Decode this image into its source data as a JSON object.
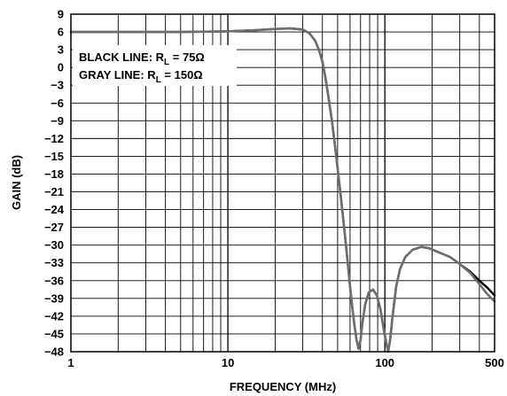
{
  "chart_data": {
    "type": "line",
    "xlabel": "FREQUENCY (MHz)",
    "ylabel": "GAIN (dB)",
    "xscale": "log",
    "xlim": [
      1,
      500
    ],
    "ylim": [
      -48,
      9
    ],
    "grid": true,
    "xticks": [
      {
        "value": 1,
        "label": "1"
      },
      {
        "value": 10,
        "label": "10"
      },
      {
        "value": 100,
        "label": "100"
      },
      {
        "value": 500,
        "label": "500"
      }
    ],
    "yticks": [
      {
        "value": 9,
        "label": "9"
      },
      {
        "value": 6,
        "label": "6"
      },
      {
        "value": 3,
        "label": "3"
      },
      {
        "value": 0,
        "label": "0"
      },
      {
        "value": -3,
        "label": "−3"
      },
      {
        "value": -6,
        "label": "−6"
      },
      {
        "value": -9,
        "label": "−9"
      },
      {
        "value": -12,
        "label": "−12"
      },
      {
        "value": -15,
        "label": "−15"
      },
      {
        "value": -18,
        "label": "−18"
      },
      {
        "value": -21,
        "label": "−21"
      },
      {
        "value": -24,
        "label": "−24"
      },
      {
        "value": -27,
        "label": "−27"
      },
      {
        "value": -30,
        "label": "−30"
      },
      {
        "value": -33,
        "label": "−33"
      },
      {
        "value": -36,
        "label": "−36"
      },
      {
        "value": -39,
        "label": "−39"
      },
      {
        "value": -42,
        "label": "−42"
      },
      {
        "value": -45,
        "label": "−45"
      },
      {
        "value": -48,
        "label": "−48"
      }
    ],
    "legend": {
      "placement": "top-left",
      "lines": [
        {
          "prefix": "BLACK LINE: R",
          "sub": "L",
          "suffix": " = 75Ω"
        },
        {
          "prefix": "GRAY LINE: R",
          "sub": "L",
          "suffix": " = 150Ω"
        }
      ]
    },
    "series": [
      {
        "name": "BLACK LINE: RL = 75Ω",
        "color": "#000000",
        "points": [
          [
            1,
            6.0
          ],
          [
            2,
            6.0
          ],
          [
            5,
            6.0
          ],
          [
            10,
            6.1
          ],
          [
            15,
            6.3
          ],
          [
            20,
            6.5
          ],
          [
            25,
            6.6
          ],
          [
            30,
            6.4
          ],
          [
            33,
            5.8
          ],
          [
            36,
            4.5
          ],
          [
            38,
            3.0
          ],
          [
            40,
            1.0
          ],
          [
            42,
            -2.0
          ],
          [
            44,
            -5.5
          ],
          [
            46,
            -9.0
          ],
          [
            48,
            -13.0
          ],
          [
            50,
            -17.0
          ],
          [
            52,
            -21.0
          ],
          [
            54,
            -25.0
          ],
          [
            56,
            -29.0
          ],
          [
            58,
            -33.0
          ],
          [
            60,
            -37.0
          ],
          [
            62,
            -40.5
          ],
          [
            64,
            -43.5
          ],
          [
            66,
            -46.0
          ],
          [
            68,
            -47.5
          ],
          [
            70,
            -46.0
          ],
          [
            72,
            -43.0
          ],
          [
            75,
            -40.0
          ],
          [
            79,
            -38.0
          ],
          [
            84,
            -37.5
          ],
          [
            89,
            -38.5
          ],
          [
            94,
            -41.0
          ],
          [
            98,
            -44.0
          ],
          [
            102,
            -46.5
          ],
          [
            105,
            -48.0
          ],
          [
            108,
            -46.0
          ],
          [
            112,
            -42.0
          ],
          [
            118,
            -37.0
          ],
          [
            125,
            -34.0
          ],
          [
            135,
            -32.0
          ],
          [
            150,
            -30.8
          ],
          [
            170,
            -30.3
          ],
          [
            190,
            -30.5
          ],
          [
            220,
            -31.2
          ],
          [
            260,
            -32.0
          ],
          [
            300,
            -33.2
          ],
          [
            350,
            -34.5
          ],
          [
            400,
            -36.0
          ],
          [
            450,
            -37.2
          ],
          [
            500,
            -38.5
          ]
        ]
      },
      {
        "name": "GRAY LINE: RL = 150Ω",
        "color": "#6e6e6e",
        "points": [
          [
            1,
            6.0
          ],
          [
            2,
            6.0
          ],
          [
            5,
            6.0
          ],
          [
            10,
            6.1
          ],
          [
            15,
            6.3
          ],
          [
            20,
            6.5
          ],
          [
            25,
            6.6
          ],
          [
            30,
            6.4
          ],
          [
            33,
            5.8
          ],
          [
            36,
            4.5
          ],
          [
            38,
            3.0
          ],
          [
            40,
            1.0
          ],
          [
            42,
            -2.0
          ],
          [
            44,
            -5.5
          ],
          [
            46,
            -9.0
          ],
          [
            48,
            -13.0
          ],
          [
            50,
            -17.0
          ],
          [
            52,
            -21.0
          ],
          [
            54,
            -25.0
          ],
          [
            56,
            -29.0
          ],
          [
            58,
            -33.0
          ],
          [
            60,
            -37.0
          ],
          [
            62,
            -40.5
          ],
          [
            64,
            -43.5
          ],
          [
            66,
            -46.0
          ],
          [
            68,
            -47.5
          ],
          [
            70,
            -46.0
          ],
          [
            72,
            -43.0
          ],
          [
            75,
            -40.0
          ],
          [
            79,
            -38.0
          ],
          [
            84,
            -37.5
          ],
          [
            89,
            -38.5
          ],
          [
            94,
            -41.0
          ],
          [
            98,
            -44.0
          ],
          [
            102,
            -46.5
          ],
          [
            105,
            -48.0
          ],
          [
            108,
            -46.0
          ],
          [
            112,
            -42.0
          ],
          [
            118,
            -37.0
          ],
          [
            125,
            -34.0
          ],
          [
            135,
            -32.0
          ],
          [
            150,
            -30.8
          ],
          [
            170,
            -30.3
          ],
          [
            190,
            -30.5
          ],
          [
            220,
            -31.2
          ],
          [
            260,
            -32.0
          ],
          [
            300,
            -33.2
          ],
          [
            350,
            -34.7
          ],
          [
            400,
            -36.6
          ],
          [
            450,
            -38.3
          ],
          [
            500,
            -39.5
          ]
        ]
      }
    ]
  }
}
